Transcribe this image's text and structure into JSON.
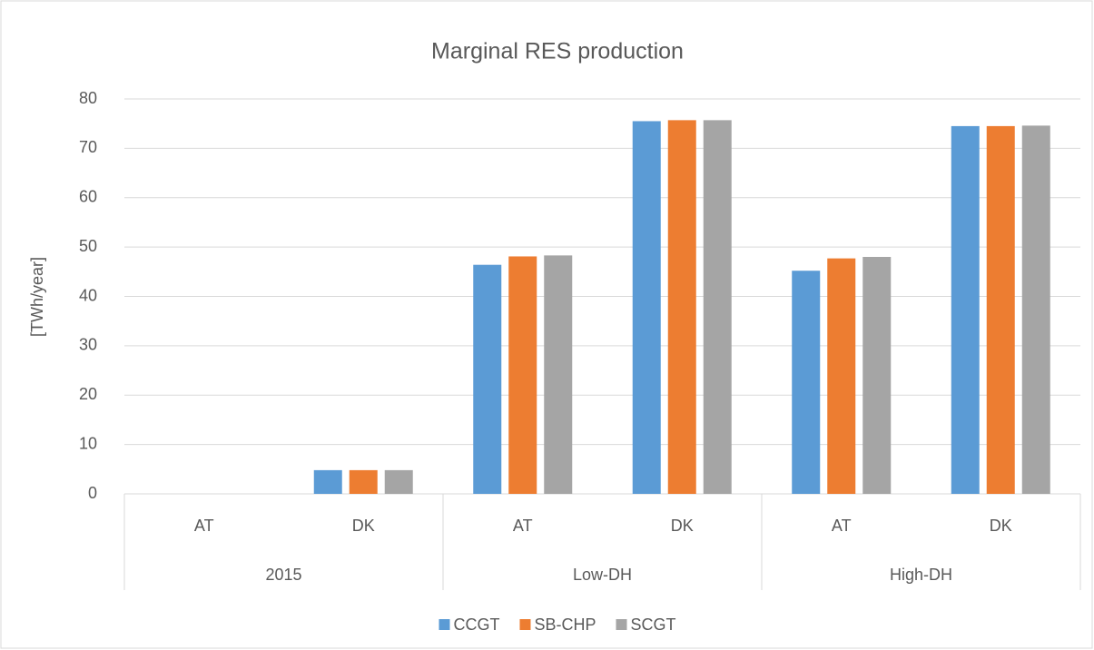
{
  "chart_data": {
    "type": "bar",
    "title": "Marginal RES production",
    "y_label": "[TWh/year]",
    "groups": [
      {
        "name": "2015",
        "categories": [
          "AT",
          "DK"
        ]
      },
      {
        "name": "Low-DH",
        "categories": [
          "AT",
          "DK"
        ]
      },
      {
        "name": "High-DH",
        "categories": [
          "AT",
          "DK"
        ]
      }
    ],
    "series": [
      {
        "name": "CCGT",
        "color": "#5b9bd5",
        "values": [
          0,
          4.8,
          46.4,
          75.5,
          45.2,
          74.5
        ]
      },
      {
        "name": "SB-CHP",
        "color": "#ed7d31",
        "values": [
          0,
          4.8,
          48.1,
          75.7,
          47.7,
          74.5
        ]
      },
      {
        "name": "SCGT",
        "color": "#a5a5a5",
        "values": [
          0,
          4.8,
          48.3,
          75.7,
          48.0,
          74.6
        ]
      }
    ],
    "ylim": [
      0,
      80
    ],
    "yticks": [
      0,
      10,
      20,
      30,
      40,
      50,
      60,
      70,
      80
    ],
    "grid": true,
    "legend": "bottom"
  }
}
